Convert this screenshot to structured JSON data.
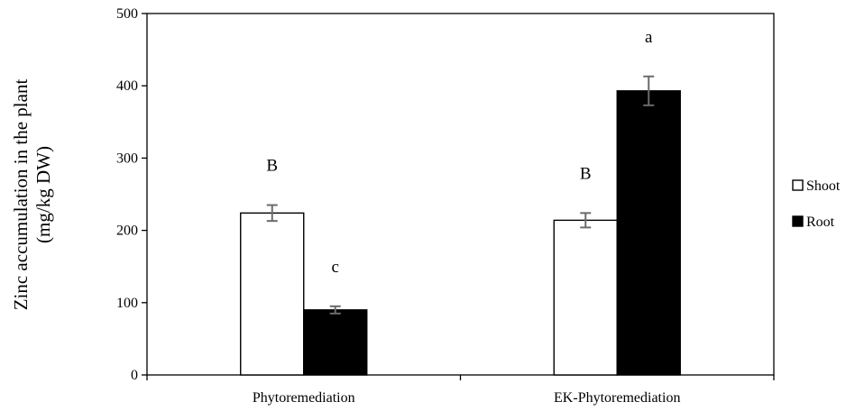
{
  "chart_data": {
    "type": "bar",
    "categories": [
      "Phytoremediation",
      "EK-Phytoremediation"
    ],
    "series": [
      {
        "name": "Shoot",
        "color": "#ffffff",
        "values": [
          224,
          214
        ],
        "errors": [
          11,
          10
        ],
        "labels": [
          "B",
          "B"
        ]
      },
      {
        "name": "Root",
        "color": "#000000",
        "values": [
          90,
          393
        ],
        "errors": [
          5,
          20
        ],
        "labels": [
          "c",
          "a"
        ]
      }
    ],
    "ylabel_lines": [
      "Zinc accumulation in the plant",
      "(mg/kg DW)"
    ],
    "ylim": [
      0,
      500
    ],
    "yticks": [
      "0",
      "100",
      "200",
      "300",
      "400",
      "500"
    ],
    "grid": false,
    "legend_position": "right"
  }
}
